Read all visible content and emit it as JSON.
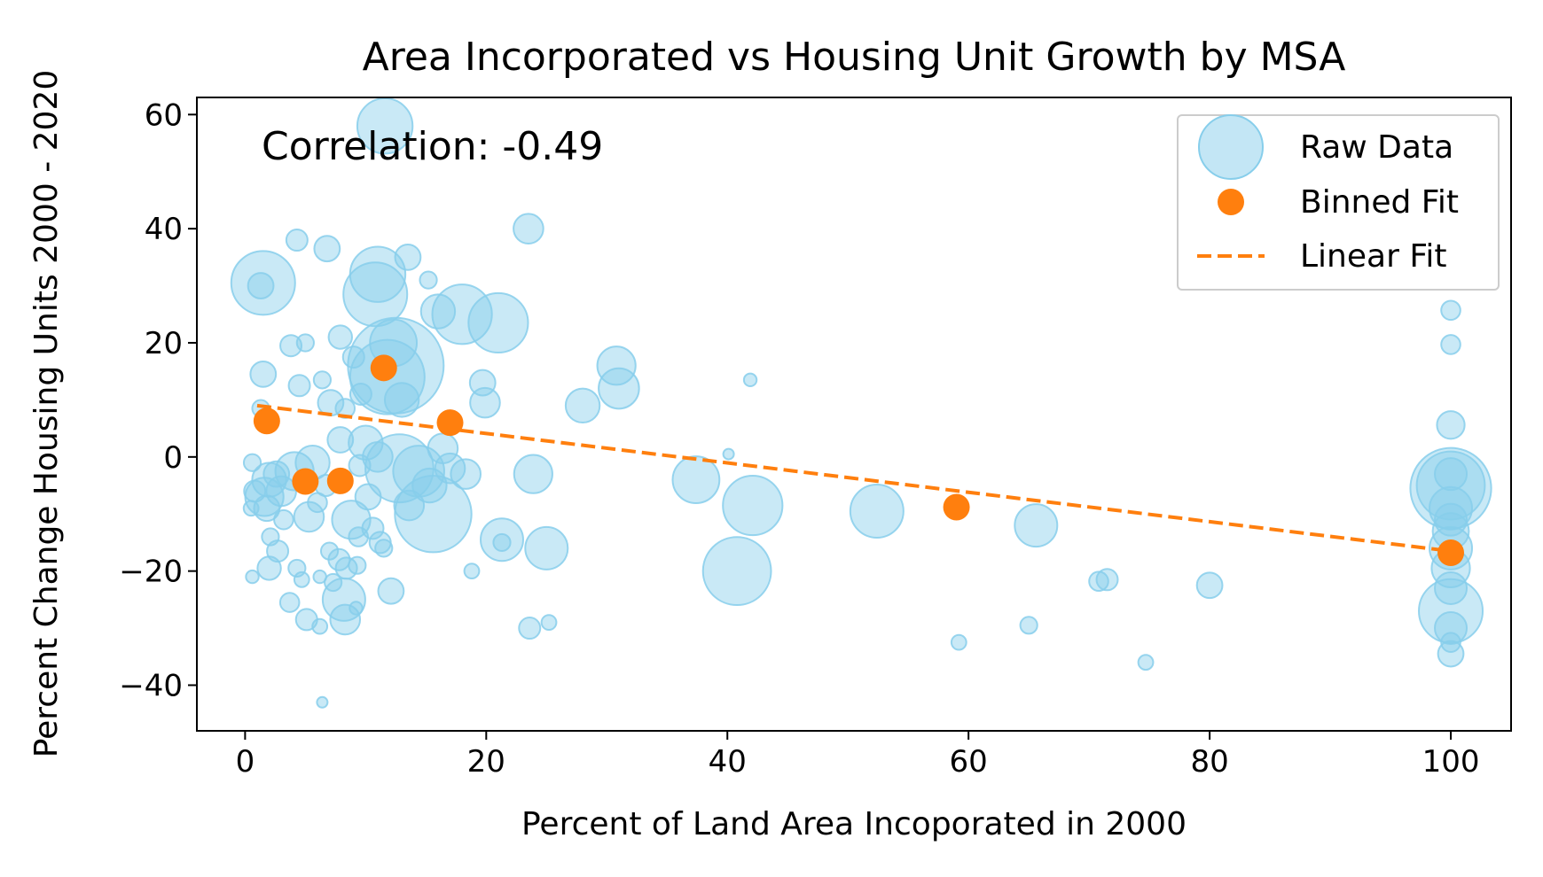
{
  "chart_data": {
    "type": "scatter",
    "title": "Area Incorporated vs Housing Unit Growth by MSA",
    "xlabel": "Percent of Land Area Incoporated in 2000",
    "ylabel": "Percent Change Housing Units 2000 - 2020",
    "xlim": [
      -4,
      105
    ],
    "ylim": [
      -48,
      63
    ],
    "xticks": [
      0,
      20,
      40,
      60,
      80,
      100
    ],
    "yticks": [
      -40,
      -20,
      0,
      20,
      40,
      60
    ],
    "xtick_labels": [
      "0",
      "20",
      "40",
      "60",
      "80",
      "100"
    ],
    "ytick_labels": [
      "−40",
      "−20",
      "0",
      "20",
      "40",
      "60"
    ],
    "annotation": "Correlation: -0.49",
    "legend": {
      "position": "top-right",
      "entries": [
        "Raw Data",
        "Binned Fit",
        "Linear Fit"
      ]
    },
    "colors": {
      "raw": "#87ceeb",
      "binned": "#ff7f0e",
      "linear": "#ff7f0e"
    },
    "series": [
      {
        "name": "Raw Data",
        "kind": "bubble",
        "points": [
          [
            1.5,
            30.5,
            3
          ],
          [
            1.3,
            30,
            1.2
          ],
          [
            11.6,
            58,
            2.6
          ],
          [
            3.8,
            19.5,
            1
          ],
          [
            6.8,
            36.5,
            1.2
          ],
          [
            4.3,
            38,
            1
          ],
          [
            11,
            32,
            2.6
          ],
          [
            10.8,
            28.5,
            3
          ],
          [
            13.5,
            35,
            1.2
          ],
          [
            15.2,
            31,
            0.8
          ],
          [
            12.3,
            20,
            2.2
          ],
          [
            12.5,
            16,
            4.5
          ],
          [
            11.8,
            14,
            3.5
          ],
          [
            13,
            10,
            1.6
          ],
          [
            9,
            17.5,
            1
          ],
          [
            7.9,
            21,
            1.1
          ],
          [
            5,
            20,
            0.8
          ],
          [
            4.5,
            12.5,
            1
          ],
          [
            1.5,
            14.5,
            1.2
          ],
          [
            6.4,
            13.5,
            0.8
          ],
          [
            7.1,
            9.5,
            1.2
          ],
          [
            9.6,
            11,
            1
          ],
          [
            8.3,
            8.5,
            0.9
          ],
          [
            1.3,
            8.5,
            0.8
          ],
          [
            16,
            25.5,
            1.6
          ],
          [
            18,
            25,
            2.8
          ],
          [
            21,
            23.5,
            2.8
          ],
          [
            19.7,
            13,
            1.2
          ],
          [
            19.9,
            9.5,
            1.4
          ],
          [
            23.5,
            40,
            1.4
          ],
          [
            30.8,
            16,
            1.8
          ],
          [
            31,
            12,
            1.9
          ],
          [
            28,
            9,
            1.6
          ],
          [
            41.9,
            13.5,
            0.6
          ],
          [
            40.1,
            0.5,
            0.5
          ],
          [
            7.9,
            3,
            1.2
          ],
          [
            10,
            2.5,
            1.6
          ],
          [
            11,
            0,
            1.4
          ],
          [
            9.5,
            -1.5,
            1
          ],
          [
            5.6,
            -1,
            1.6
          ],
          [
            4.1,
            -2.5,
            1.8
          ],
          [
            2,
            -4,
            1.6
          ],
          [
            1.6,
            -7,
            1.8
          ],
          [
            3,
            -6,
            1.4
          ],
          [
            0.6,
            -1,
            0.8
          ],
          [
            0.5,
            -9,
            0.7
          ],
          [
            5.3,
            -10.5,
            1.4
          ],
          [
            2.1,
            -14,
            0.8
          ],
          [
            2.7,
            -16.5,
            1
          ],
          [
            2,
            -19.5,
            1.1
          ],
          [
            0.6,
            -21,
            0.6
          ],
          [
            4.3,
            -19.5,
            0.8
          ],
          [
            4.7,
            -21.5,
            0.7
          ],
          [
            6.2,
            -21,
            0.6
          ],
          [
            7,
            -16.5,
            0.8
          ],
          [
            7.8,
            -18,
            1
          ],
          [
            8.4,
            -19.5,
            1
          ],
          [
            9.3,
            -19,
            0.8
          ],
          [
            8.2,
            -25,
            2
          ],
          [
            7.3,
            -22,
            0.8
          ],
          [
            3.7,
            -25.5,
            0.9
          ],
          [
            5.1,
            -28.5,
            1
          ],
          [
            6.2,
            -29.7,
            0.7
          ],
          [
            8.3,
            -28.5,
            1.4
          ],
          [
            6.4,
            -43,
            0.5
          ],
          [
            9.2,
            -26.5,
            0.6
          ],
          [
            10.6,
            -12.5,
            1
          ],
          [
            11.2,
            -15,
            1
          ],
          [
            11.5,
            -16,
            0.8
          ],
          [
            12.1,
            -23.5,
            1.2
          ],
          [
            8.8,
            -11,
            1.8
          ],
          [
            12.8,
            -2,
            3.2
          ],
          [
            14.4,
            -2.5,
            2.4
          ],
          [
            15.3,
            -5,
            1.6
          ],
          [
            15.6,
            -10,
            3.6
          ],
          [
            13.6,
            -8.5,
            1.4
          ],
          [
            17,
            -2,
            1.4
          ],
          [
            18.3,
            -3,
            1.4
          ],
          [
            16.4,
            1.5,
            1.4
          ],
          [
            18.8,
            -20,
            0.7
          ],
          [
            21.3,
            -14.5,
            2
          ],
          [
            21.3,
            -15,
            0.8
          ],
          [
            23.9,
            -3,
            1.8
          ],
          [
            25,
            -16,
            2
          ],
          [
            23.6,
            -30,
            1
          ],
          [
            25.2,
            -29,
            0.7
          ],
          [
            37.4,
            -4,
            2.2
          ],
          [
            42.1,
            -8.5,
            2.8
          ],
          [
            40.8,
            -20,
            3.2
          ],
          [
            52.4,
            -9.5,
            2.5
          ],
          [
            65.6,
            -12,
            2
          ],
          [
            59.2,
            -32.5,
            0.7
          ],
          [
            65,
            -29.5,
            0.8
          ],
          [
            70.8,
            -21.8,
            0.9
          ],
          [
            71.5,
            -21.5,
            1
          ],
          [
            74.7,
            -36,
            0.7
          ],
          [
            80,
            -22.5,
            1.2
          ],
          [
            100,
            25.7,
            0.9
          ],
          [
            100,
            19.7,
            0.9
          ],
          [
            100,
            5.6,
            1.3
          ],
          [
            100,
            -3,
            1.5
          ],
          [
            100,
            -5,
            3.2
          ],
          [
            100,
            -5.5,
            3.8
          ],
          [
            100,
            -9,
            2
          ],
          [
            100,
            -13,
            1.7
          ],
          [
            100,
            -16,
            2
          ],
          [
            100,
            -19.5,
            1.8
          ],
          [
            100,
            -23,
            1.5
          ],
          [
            100,
            -27,
            3
          ],
          [
            100,
            -30,
            1.5
          ],
          [
            100,
            -34.5,
            1.2
          ],
          [
            100,
            -32.5,
            0.9
          ],
          [
            100,
            -11,
            1.5
          ],
          [
            0.8,
            -6,
            1
          ],
          [
            1.8,
            -9,
            1.2
          ],
          [
            3.2,
            -11,
            0.9
          ],
          [
            2.6,
            -3,
            1.2
          ],
          [
            6.7,
            -5,
            1
          ],
          [
            6,
            -8,
            0.9
          ],
          [
            10.2,
            -7,
            1.2
          ],
          [
            9.4,
            -14,
            0.9
          ]
        ]
      },
      {
        "name": "Binned Fit",
        "kind": "points",
        "x": [
          1.8,
          5,
          7.9,
          11.5,
          17,
          59,
          100
        ],
        "y": [
          6.3,
          -4.3,
          -4.2,
          15.6,
          6,
          -8.8,
          -16.8
        ]
      },
      {
        "name": "Linear Fit",
        "kind": "dashed-line",
        "x": [
          1,
          100
        ],
        "y": [
          9,
          -16.5
        ]
      }
    ]
  }
}
